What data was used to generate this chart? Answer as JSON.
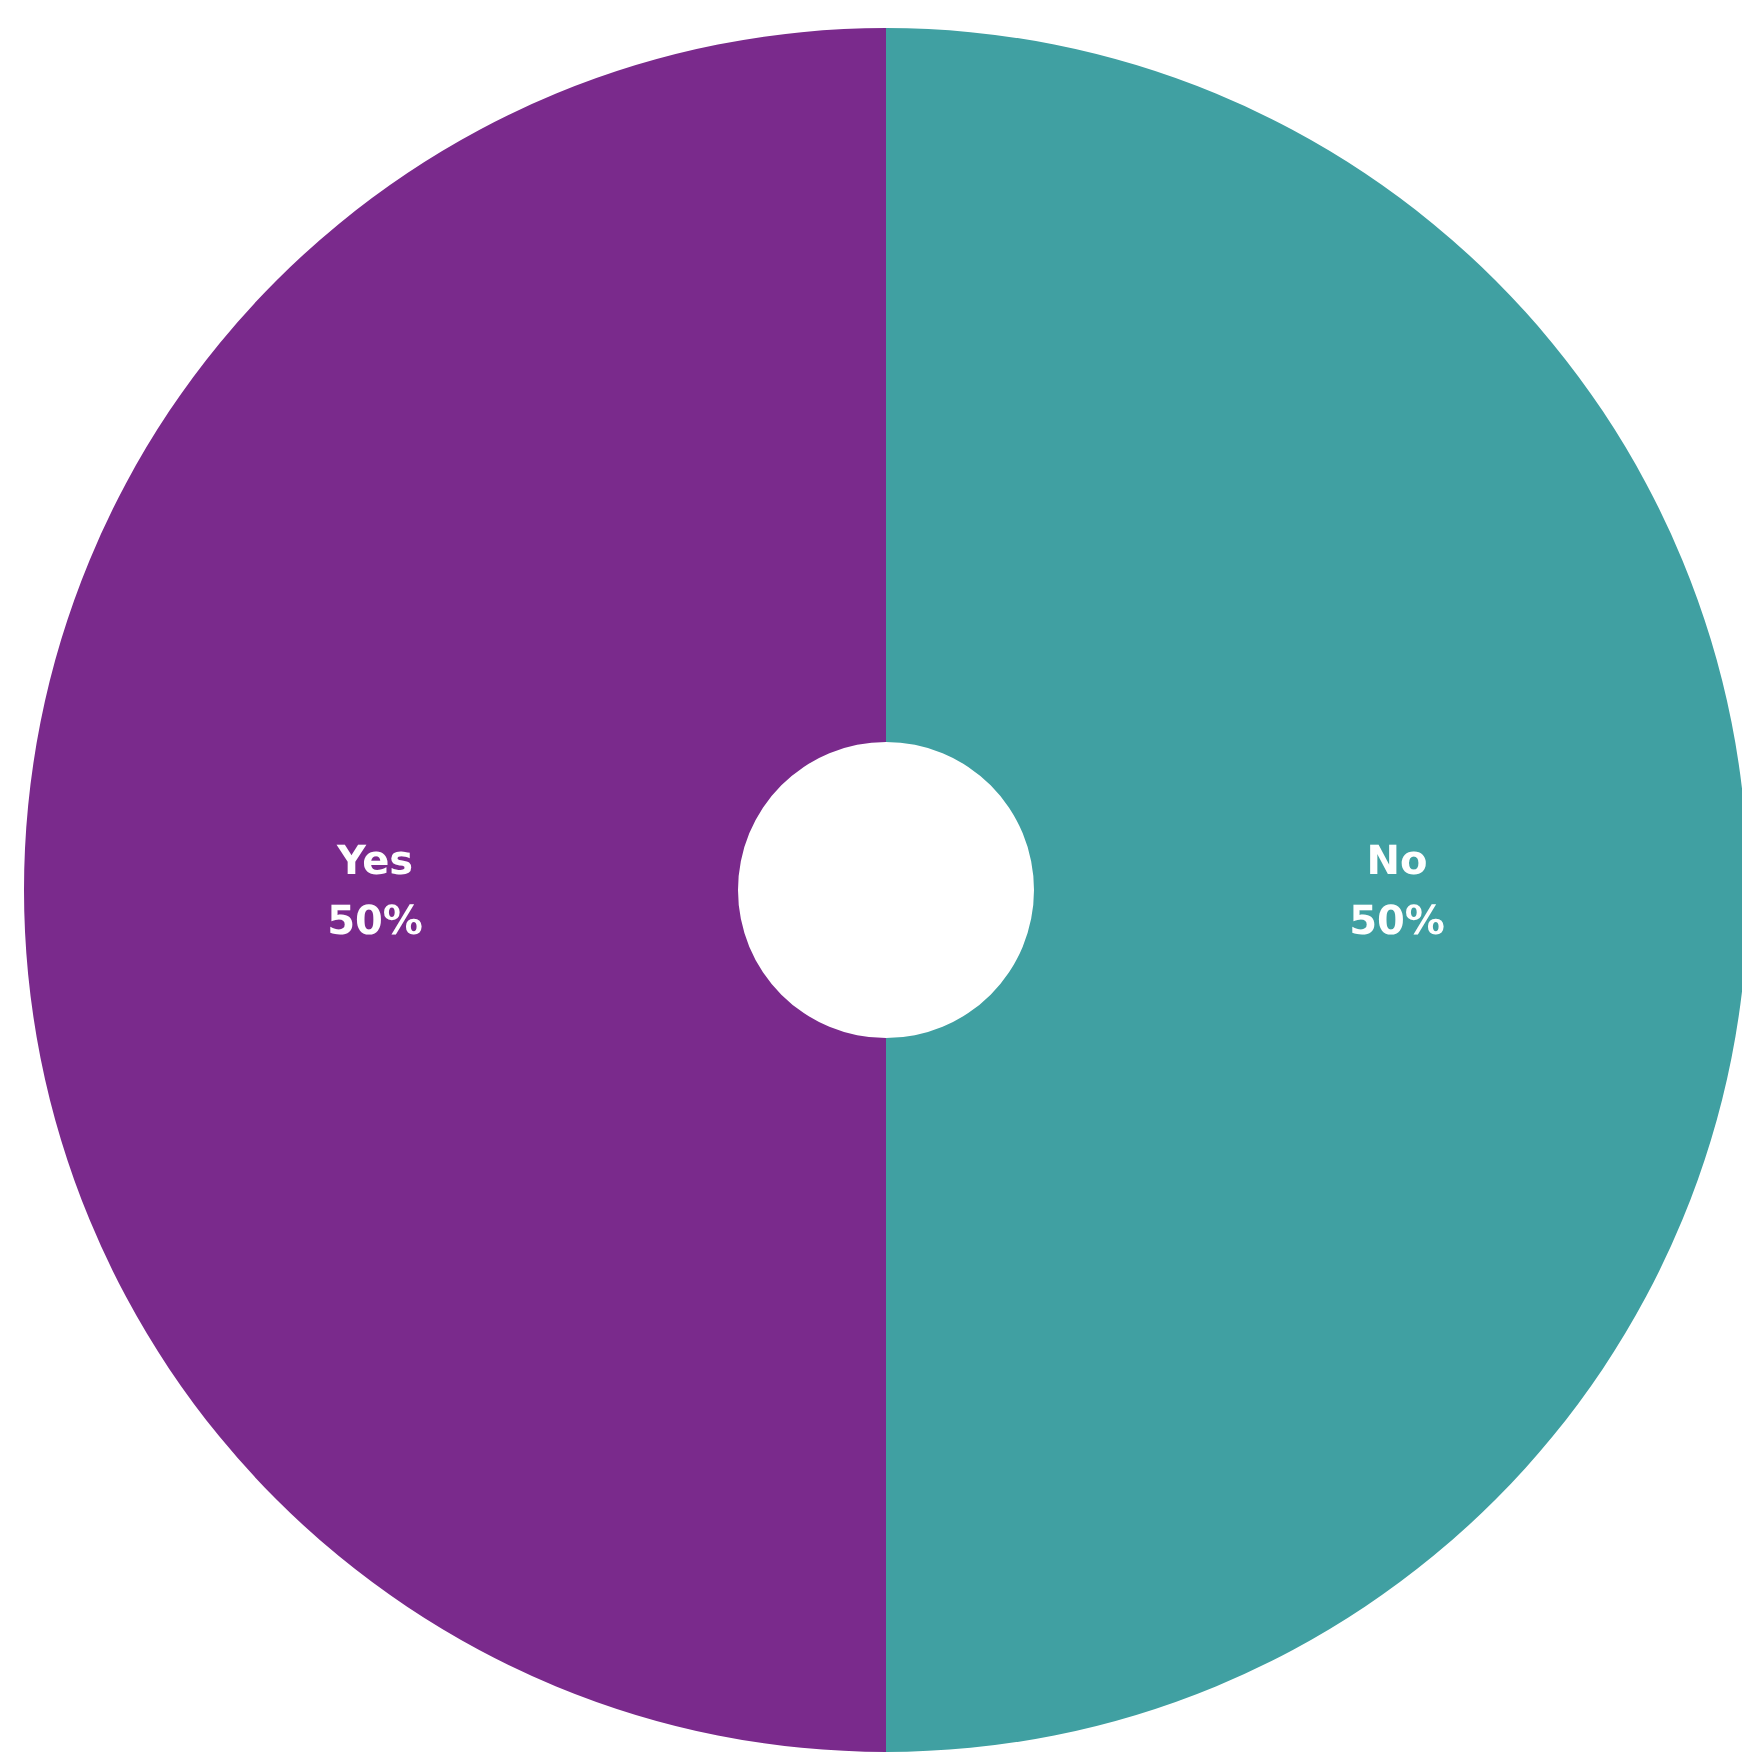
{
  "chart_data": {
    "type": "donut",
    "categories": [
      "No",
      "Yes"
    ],
    "values": [
      50,
      50
    ],
    "colors": [
      "#40a0a2",
      "#7a2a8c"
    ],
    "value_labels": [
      "50%",
      "50%"
    ],
    "legend": false
  }
}
